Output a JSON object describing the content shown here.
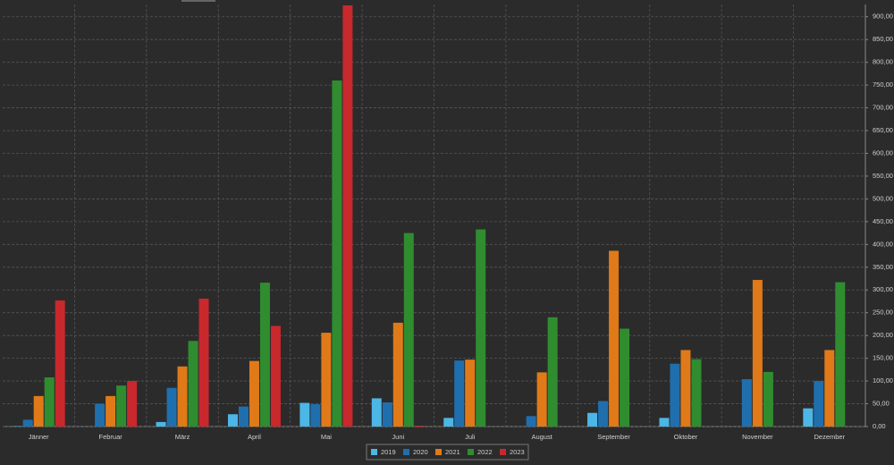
{
  "chart_data": {
    "type": "bar",
    "categories": [
      "Jänner",
      "Februar",
      "März",
      "April",
      "Mai",
      "Juni",
      "Juli",
      "August",
      "September",
      "Oktober",
      "November",
      "Dezember"
    ],
    "series": [
      {
        "name": "2019",
        "color": "#4cb6e6",
        "values": [
          1,
          0,
          10,
          27,
          52,
          62,
          19,
          null,
          30,
          19,
          null,
          40
        ]
      },
      {
        "name": "2020",
        "color": "#1f6fae",
        "values": [
          15,
          50,
          85,
          44,
          49,
          53,
          145,
          23,
          56,
          138,
          104,
          100
        ]
      },
      {
        "name": "2021",
        "color": "#e07a18",
        "values": [
          67,
          67,
          132,
          144,
          206,
          228,
          147,
          119,
          386,
          168,
          322,
          168
        ]
      },
      {
        "name": "2022",
        "color": "#2f8d2f",
        "values": [
          108,
          90,
          188,
          316,
          760,
          425,
          433,
          240,
          215,
          148,
          120,
          317
        ]
      },
      {
        "name": "2023",
        "color": "#c9282d",
        "values": [
          277,
          100,
          281,
          221,
          925,
          2,
          null,
          null,
          null,
          null,
          null,
          null
        ]
      }
    ],
    "ylim": [
      0,
      927
    ],
    "yticks": [
      {
        "value": 0,
        "label": "0,00"
      },
      {
        "value": 50,
        "label": "50,00"
      },
      {
        "value": 100,
        "label": "100,00"
      },
      {
        "value": 150,
        "label": "150,00"
      },
      {
        "value": 200,
        "label": "200,00"
      },
      {
        "value": 250,
        "label": "250,00"
      },
      {
        "value": 300,
        "label": "300,00"
      },
      {
        "value": 350,
        "label": "350,00"
      },
      {
        "value": 400,
        "label": "400,00"
      },
      {
        "value": 450,
        "label": "450,00"
      },
      {
        "value": 500,
        "label": "500,00"
      },
      {
        "value": 550,
        "label": "550,00"
      },
      {
        "value": 600,
        "label": "600,00"
      },
      {
        "value": 650,
        "label": "650,00"
      },
      {
        "value": 700,
        "label": "700,00"
      },
      {
        "value": 750,
        "label": "750,00"
      },
      {
        "value": 800,
        "label": "800,00"
      },
      {
        "value": 850,
        "label": "850,00"
      },
      {
        "value": 900,
        "label": "900,00"
      }
    ],
    "grid": true,
    "legend": "bottom"
  }
}
